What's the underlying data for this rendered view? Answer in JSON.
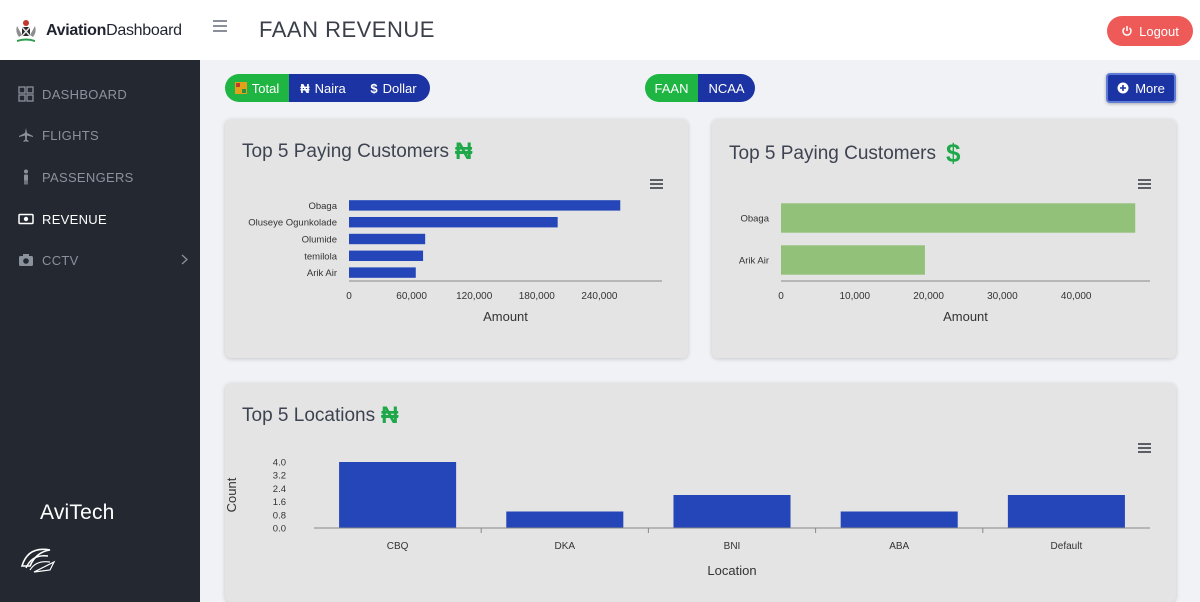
{
  "header": {
    "brand_bold": "Aviation",
    "brand_rest": "Dashboard",
    "page_title": "FAAN REVENUE",
    "logout_label": "Logout"
  },
  "sidebar": {
    "items": [
      {
        "label": "DASHBOARD",
        "icon": "grid-icon",
        "active": false
      },
      {
        "label": "FLIGHTS",
        "icon": "airplane-icon",
        "active": false
      },
      {
        "label": "PASSENGERS",
        "icon": "person-icon",
        "active": false
      },
      {
        "label": "REVENUE",
        "icon": "money-icon",
        "active": true
      },
      {
        "label": "CCTV",
        "icon": "camera-icon",
        "active": false
      }
    ],
    "footer_logo": "AviTech"
  },
  "toolbar": {
    "currency_tabs": [
      "Total",
      "Naira",
      "Dollar"
    ],
    "agency_tabs": [
      "FAAN",
      "NCAA"
    ],
    "more_label": "More",
    "colors": {
      "green": "#1fb543",
      "navy": "#1c33a3"
    }
  },
  "cards": {
    "naira_customers": {
      "title": "Top 5 Paying Customers",
      "currency_symbol": "₦"
    },
    "dollar_customers": {
      "title": "Top 5 Paying Customers",
      "currency_symbol": "$"
    },
    "locations": {
      "title": "Top 5 Locations",
      "currency_symbol": "₦"
    }
  },
  "chart_data": [
    {
      "type": "bar",
      "orientation": "horizontal",
      "categories": [
        "Obaga",
        "Oluseye Ogunkolade",
        "Olumide",
        "temilola",
        "Arik Air"
      ],
      "values": [
        260000,
        200000,
        73000,
        71000,
        64000
      ],
      "xlabel": "Amount",
      "xticks": [
        "0",
        "60,000",
        "120,000",
        "180,000",
        "240,000"
      ],
      "xlim": [
        0,
        300000
      ],
      "color": "#2446b8"
    },
    {
      "type": "bar",
      "orientation": "horizontal",
      "categories": [
        "Obaga",
        "Arik Air"
      ],
      "values": [
        48000,
        19500
      ],
      "xlabel": "Amount",
      "xticks": [
        "0",
        "10,000",
        "20,000",
        "30,000",
        "40,000"
      ],
      "xlim": [
        0,
        50000
      ],
      "color": "#92c27a"
    },
    {
      "type": "bar",
      "orientation": "vertical",
      "categories": [
        "CBQ",
        "DKA",
        "BNI",
        "ABA",
        "Default"
      ],
      "values": [
        4,
        1,
        2,
        1,
        2
      ],
      "xlabel": "Location",
      "ylabel": "Count",
      "yticks": [
        "0.0",
        "0.8",
        "1.6",
        "2.4",
        "3.2",
        "4.0"
      ],
      "ylim": [
        0,
        4
      ],
      "color": "#2446b8"
    }
  ]
}
